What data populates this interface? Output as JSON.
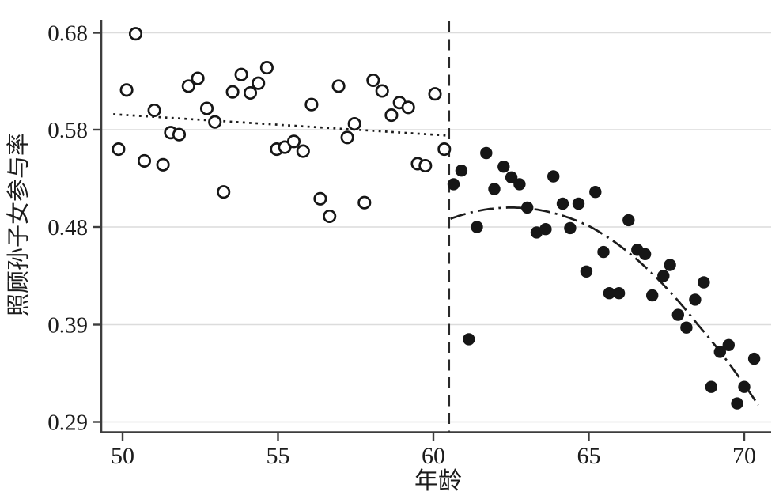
{
  "chart_data": {
    "type": "scatter",
    "title": "",
    "xlabel": "年龄",
    "ylabel": "照顾孙子女参与率",
    "x_ticks": [
      50,
      55,
      60,
      65,
      70
    ],
    "y_ticks": [
      0.68,
      0.58,
      0.48,
      0.39,
      0.29
    ],
    "y_tick_labels": [
      "0.68",
      "0.58",
      "0.48",
      "0.39",
      "0.29"
    ],
    "xlim": [
      49.3,
      70.9
    ],
    "ylim": [
      0.28,
      0.695
    ],
    "grid": "horizontal",
    "legend": "none",
    "cutoff_x": 60.5,
    "colors": {
      "point": "#161616",
      "line": "#1c1c1c",
      "axis": "#3d3d3d",
      "grid": "#dcdcdc",
      "background": "#ffffff"
    },
    "series": [
      {
        "name": "open_circles_pre_cutoff",
        "marker": "open-circle",
        "points": [
          [
            49.87,
            0.56
          ],
          [
            50.13,
            0.621
          ],
          [
            50.42,
            0.679
          ],
          [
            50.7,
            0.548
          ],
          [
            51.02,
            0.6
          ],
          [
            51.3,
            0.544
          ],
          [
            51.55,
            0.577
          ],
          [
            51.82,
            0.575
          ],
          [
            52.12,
            0.625
          ],
          [
            52.42,
            0.633
          ],
          [
            52.71,
            0.602
          ],
          [
            52.97,
            0.588
          ],
          [
            53.25,
            0.516
          ],
          [
            53.54,
            0.619
          ],
          [
            53.82,
            0.637
          ],
          [
            54.11,
            0.618
          ],
          [
            54.37,
            0.628
          ],
          [
            54.64,
            0.644
          ],
          [
            54.96,
            0.56
          ],
          [
            55.22,
            0.562
          ],
          [
            55.51,
            0.568
          ],
          [
            55.81,
            0.558
          ],
          [
            56.08,
            0.606
          ],
          [
            56.36,
            0.509
          ],
          [
            56.66,
            0.491
          ],
          [
            56.95,
            0.625
          ],
          [
            57.23,
            0.572
          ],
          [
            57.46,
            0.586
          ],
          [
            57.78,
            0.505
          ],
          [
            58.06,
            0.631
          ],
          [
            58.35,
            0.62
          ],
          [
            58.65,
            0.595
          ],
          [
            58.91,
            0.608
          ],
          [
            59.19,
            0.603
          ],
          [
            59.49,
            0.545
          ],
          [
            59.74,
            0.543
          ],
          [
            60.05,
            0.617
          ],
          [
            60.35,
            0.56
          ]
        ]
      },
      {
        "name": "filled_circles_post_cutoff",
        "marker": "filled-circle",
        "points": [
          [
            60.65,
            0.524
          ],
          [
            60.9,
            0.538
          ],
          [
            61.14,
            0.375
          ],
          [
            61.4,
            0.48
          ],
          [
            61.7,
            0.556
          ],
          [
            61.96,
            0.519
          ],
          [
            62.26,
            0.542
          ],
          [
            62.51,
            0.531
          ],
          [
            62.77,
            0.524
          ],
          [
            63.02,
            0.5
          ],
          [
            63.32,
            0.475
          ],
          [
            63.61,
            0.478
          ],
          [
            63.86,
            0.532
          ],
          [
            64.16,
            0.504
          ],
          [
            64.67,
            0.504
          ],
          [
            64.4,
            0.479
          ],
          [
            64.92,
            0.439
          ],
          [
            65.21,
            0.516
          ],
          [
            65.47,
            0.457
          ],
          [
            65.66,
            0.419
          ],
          [
            65.97,
            0.419
          ],
          [
            66.28,
            0.487
          ],
          [
            66.56,
            0.459
          ],
          [
            66.81,
            0.455
          ],
          [
            67.04,
            0.417
          ],
          [
            67.4,
            0.435
          ],
          [
            67.61,
            0.445
          ],
          [
            67.87,
            0.399
          ],
          [
            68.14,
            0.387
          ],
          [
            68.42,
            0.413
          ],
          [
            68.7,
            0.429
          ],
          [
            68.94,
            0.326
          ],
          [
            69.22,
            0.362
          ],
          [
            69.5,
            0.369
          ],
          [
            69.77,
            0.309
          ],
          [
            70.0,
            0.326
          ],
          [
            70.32,
            0.355
          ]
        ]
      }
    ],
    "fits": [
      {
        "name": "pre_cutoff_linear_fit",
        "line_style": "dotted",
        "x_start": 49.7,
        "y_start": 0.596,
        "x_end": 60.45,
        "y_end": 0.574
      },
      {
        "name": "post_cutoff_quadratic_fit",
        "line_style": "dash-dot",
        "x_start": 60.55,
        "x_end": 70.45,
        "vertex_x": 62.5,
        "vertex_y": 0.5,
        "a": -0.00305,
        "y_at_end": 0.306
      }
    ]
  }
}
